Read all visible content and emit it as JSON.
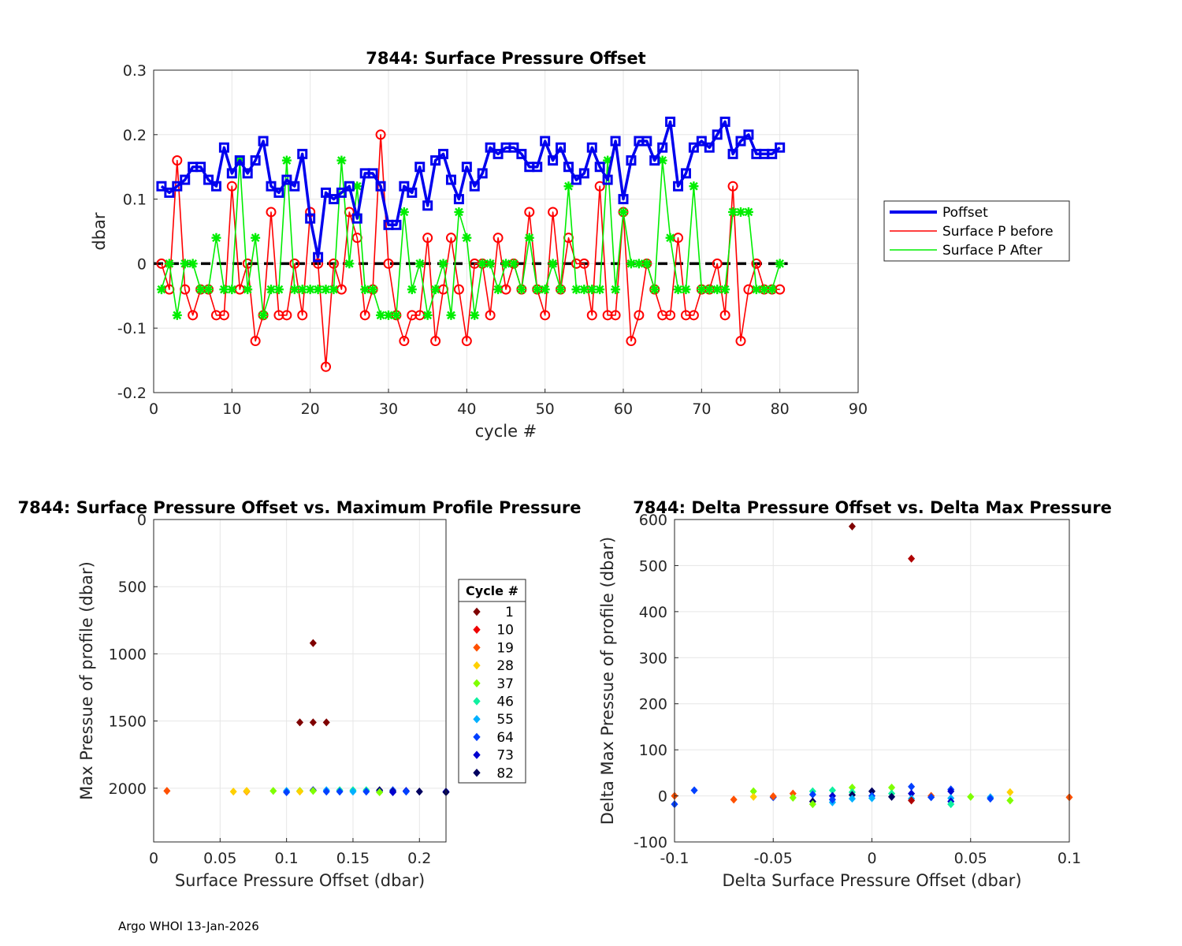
{
  "footer": "Argo WHOI 13-Jan-2026",
  "chart_data": [
    {
      "type": "line",
      "title": "7844: Surface Pressure Offset",
      "xlabel": "cycle #",
      "ylabel": "dbar",
      "xlim": [
        0,
        90
      ],
      "ylim": [
        -0.2,
        0.3
      ],
      "xticks": [
        0,
        10,
        20,
        30,
        40,
        50,
        60,
        70,
        80,
        90
      ],
      "yticks": [
        -0.2,
        -0.1,
        0,
        0.1,
        0.2,
        0.3
      ],
      "grid": true,
      "legend_position": "right",
      "zero_line": {
        "x": [
          0,
          81
        ],
        "y": 0,
        "style": "dashed",
        "color": "#000000"
      },
      "x": [
        1,
        2,
        3,
        4,
        5,
        6,
        7,
        8,
        9,
        10,
        11,
        12,
        13,
        14,
        15,
        16,
        17,
        18,
        19,
        20,
        21,
        22,
        23,
        24,
        25,
        26,
        27,
        28,
        29,
        30,
        31,
        32,
        33,
        34,
        35,
        36,
        37,
        38,
        39,
        40,
        41,
        42,
        43,
        44,
        45,
        46,
        47,
        48,
        49,
        50,
        51,
        52,
        53,
        54,
        55,
        56,
        57,
        58,
        59,
        60,
        61,
        62,
        63,
        64,
        65,
        66,
        67,
        68,
        69,
        70,
        71,
        72,
        73,
        74,
        75,
        76,
        77,
        78,
        79,
        80
      ],
      "series": [
        {
          "name": "Poffset",
          "color": "#0000ee",
          "marker": "square",
          "linewidth": 4,
          "values": [
            0.12,
            0.11,
            0.12,
            0.13,
            0.15,
            0.15,
            0.13,
            0.12,
            0.18,
            0.14,
            0.16,
            0.14,
            0.16,
            0.19,
            0.12,
            0.11,
            0.13,
            0.12,
            0.17,
            0.07,
            0.01,
            0.11,
            0.1,
            0.11,
            0.12,
            0.07,
            0.14,
            0.14,
            0.12,
            0.06,
            0.06,
            0.12,
            0.11,
            0.15,
            0.09,
            0.16,
            0.17,
            0.13,
            0.1,
            0.15,
            0.12,
            0.14,
            0.18,
            0.17,
            0.18,
            0.18,
            0.17,
            0.15,
            0.15,
            0.19,
            0.16,
            0.18,
            0.15,
            0.13,
            0.14,
            0.18,
            0.15,
            0.13,
            0.19,
            0.1,
            0.16,
            0.19,
            0.19,
            0.16,
            0.18,
            0.22,
            0.12,
            0.14,
            0.18,
            0.19,
            0.18,
            0.2,
            0.22,
            0.17,
            0.19,
            0.2,
            0.17,
            0.17,
            0.17,
            0.18
          ]
        },
        {
          "name": "Surface P before",
          "color": "#ff0000",
          "marker": "circle",
          "linewidth": 1.5,
          "values": [
            0.0,
            -0.04,
            0.16,
            -0.04,
            -0.08,
            -0.04,
            -0.04,
            -0.08,
            -0.08,
            0.12,
            -0.04,
            0.0,
            -0.12,
            -0.08,
            0.08,
            -0.08,
            -0.08,
            0.0,
            -0.08,
            0.08,
            0.0,
            -0.16,
            0.0,
            -0.04,
            0.08,
            0.04,
            -0.08,
            -0.04,
            0.2,
            0.0,
            -0.08,
            -0.12,
            -0.08,
            -0.08,
            0.04,
            -0.12,
            -0.04,
            0.04,
            -0.04,
            -0.12,
            0.0,
            0.0,
            -0.08,
            0.04,
            -0.04,
            0.0,
            -0.04,
            0.08,
            -0.04,
            -0.08,
            0.08,
            -0.04,
            0.04,
            0.0,
            0.0,
            -0.08,
            0.12,
            -0.08,
            -0.08,
            0.08,
            -0.12,
            -0.08,
            0.0,
            -0.04,
            -0.08,
            -0.08,
            0.04,
            -0.08,
            -0.08,
            -0.04,
            -0.04,
            0.0,
            -0.08,
            0.12,
            -0.12,
            -0.04,
            0.0,
            -0.04,
            -0.04,
            -0.04
          ]
        },
        {
          "name": "Surface P After",
          "color": "#00ee00",
          "marker": "star",
          "linewidth": 1.5,
          "values": [
            -0.04,
            0.0,
            -0.08,
            0.0,
            0.0,
            -0.04,
            -0.04,
            0.04,
            -0.04,
            -0.04,
            0.16,
            -0.04,
            0.04,
            -0.08,
            -0.04,
            -0.04,
            0.16,
            -0.04,
            -0.04,
            -0.04,
            -0.04,
            -0.04,
            -0.04,
            0.16,
            0.0,
            0.12,
            -0.04,
            -0.04,
            -0.08,
            -0.08,
            -0.08,
            0.08,
            -0.04,
            0.0,
            -0.08,
            -0.04,
            0.0,
            -0.08,
            0.08,
            0.04,
            -0.08,
            0.0,
            0.0,
            -0.04,
            0.0,
            0.0,
            -0.04,
            0.04,
            -0.04,
            -0.04,
            0.0,
            -0.04,
            0.12,
            -0.04,
            -0.04,
            -0.04,
            -0.04,
            0.16,
            -0.04,
            0.08,
            0.0,
            0.0,
            0.0,
            -0.04,
            0.16,
            0.04,
            -0.04,
            -0.04,
            0.12,
            -0.04,
            -0.04,
            -0.04,
            -0.04,
            0.08,
            0.08,
            0.08,
            -0.04,
            -0.04,
            -0.04,
            0.0
          ]
        }
      ]
    },
    {
      "type": "scatter",
      "title": "7844: Surface Pressure Offset vs. Maximum Profile Pressure",
      "xlabel": "Surface Pressure Offset (dbar)",
      "ylabel": "Max Pressue of profile (dbar)",
      "xlim": [
        0,
        0.22
      ],
      "ylim": [
        0,
        2400
      ],
      "y_reversed": true,
      "xticks": [
        0,
        0.05,
        0.1,
        0.15,
        0.2
      ],
      "yticks": [
        0,
        500,
        1000,
        1500,
        2000
      ],
      "grid": true,
      "legend": {
        "title": "Cycle #",
        "entries": [
          "1",
          "10",
          "19",
          "28",
          "37",
          "46",
          "55",
          "64",
          "73",
          "82"
        ],
        "colors": [
          "#7f0000",
          "#ee0000",
          "#ff5000",
          "#ffd000",
          "#7fff00",
          "#10f0a0",
          "#00b0ff",
          "#0040ff",
          "#0000d0",
          "#000060"
        ],
        "position": "right"
      },
      "points": [
        {
          "x": 0.12,
          "y": 920,
          "c": "#7f0000"
        },
        {
          "x": 0.11,
          "y": 1510,
          "c": "#7f0000"
        },
        {
          "x": 0.12,
          "y": 1510,
          "c": "#7f0000"
        },
        {
          "x": 0.13,
          "y": 1510,
          "c": "#7f0000"
        },
        {
          "x": 0.01,
          "y": 2020,
          "c": "#ff5000"
        },
        {
          "x": 0.06,
          "y": 2025,
          "c": "#ffd000"
        },
        {
          "x": 0.07,
          "y": 2025,
          "c": "#ff8000"
        },
        {
          "x": 0.07,
          "y": 2020,
          "c": "#ffd000"
        },
        {
          "x": 0.09,
          "y": 2020,
          "c": "#7fff00"
        },
        {
          "x": 0.1,
          "y": 2020,
          "c": "#00b0ff"
        },
        {
          "x": 0.1,
          "y": 2030,
          "c": "#0040ff"
        },
        {
          "x": 0.11,
          "y": 2020,
          "c": "#7fff00"
        },
        {
          "x": 0.11,
          "y": 2025,
          "c": "#ffd000"
        },
        {
          "x": 0.12,
          "y": 2015,
          "c": "#0000d0"
        },
        {
          "x": 0.12,
          "y": 2020,
          "c": "#7fff00"
        },
        {
          "x": 0.13,
          "y": 2015,
          "c": "#00b0ff"
        },
        {
          "x": 0.13,
          "y": 2025,
          "c": "#0040ff"
        },
        {
          "x": 0.14,
          "y": 2015,
          "c": "#10f0a0"
        },
        {
          "x": 0.14,
          "y": 2025,
          "c": "#0040ff"
        },
        {
          "x": 0.15,
          "y": 2015,
          "c": "#10f0a0"
        },
        {
          "x": 0.15,
          "y": 2025,
          "c": "#00b0ff"
        },
        {
          "x": 0.16,
          "y": 2015,
          "c": "#10f0a0"
        },
        {
          "x": 0.16,
          "y": 2025,
          "c": "#0040ff"
        },
        {
          "x": 0.17,
          "y": 2015,
          "c": "#000060"
        },
        {
          "x": 0.17,
          "y": 2025,
          "c": "#0000d0"
        },
        {
          "x": 0.17,
          "y": 2030,
          "c": "#7fff00"
        },
        {
          "x": 0.18,
          "y": 2015,
          "c": "#0040ff"
        },
        {
          "x": 0.18,
          "y": 2025,
          "c": "#000060"
        },
        {
          "x": 0.18,
          "y": 2030,
          "c": "#0000d0"
        },
        {
          "x": 0.19,
          "y": 2020,
          "c": "#0000d0"
        },
        {
          "x": 0.19,
          "y": 2025,
          "c": "#0040ff"
        },
        {
          "x": 0.2,
          "y": 2025,
          "c": "#000060"
        },
        {
          "x": 0.22,
          "y": 2025,
          "c": "#0000d0"
        },
        {
          "x": 0.22,
          "y": 2030,
          "c": "#000060"
        }
      ]
    },
    {
      "type": "scatter",
      "title": "7844: Delta Pressure Offset vs. Delta Max Pressure",
      "xlabel": "Delta Surface Pressure Offset (dbar)",
      "ylabel": "Delta Max Pressue of profile (dbar)",
      "xlim": [
        -0.1,
        0.1
      ],
      "ylim": [
        -100,
        600
      ],
      "xticks": [
        -0.1,
        -0.05,
        0,
        0.05,
        0.1
      ],
      "yticks": [
        -100,
        0,
        100,
        200,
        300,
        400,
        500,
        600
      ],
      "grid": true,
      "points": [
        {
          "x": -0.01,
          "y": 585,
          "c": "#7f0000"
        },
        {
          "x": 0.02,
          "y": 515,
          "c": "#b00000"
        },
        {
          "x": -0.1,
          "y": 0,
          "c": "#ff5000"
        },
        {
          "x": -0.1,
          "y": -18,
          "c": "#0040ff"
        },
        {
          "x": -0.09,
          "y": 12,
          "c": "#0040ff"
        },
        {
          "x": -0.07,
          "y": -8,
          "c": "#ff5000"
        },
        {
          "x": -0.06,
          "y": 10,
          "c": "#7fff00"
        },
        {
          "x": -0.06,
          "y": -2,
          "c": "#ffd000"
        },
        {
          "x": -0.05,
          "y": -3,
          "c": "#0040ff"
        },
        {
          "x": -0.05,
          "y": -1,
          "c": "#ff5000"
        },
        {
          "x": -0.04,
          "y": 5,
          "c": "#ff5000"
        },
        {
          "x": -0.04,
          "y": -4,
          "c": "#7fff00"
        },
        {
          "x": -0.03,
          "y": 10,
          "c": "#10f0a0"
        },
        {
          "x": -0.03,
          "y": 3,
          "c": "#0040ff"
        },
        {
          "x": -0.03,
          "y": -12,
          "c": "#000060"
        },
        {
          "x": -0.03,
          "y": -18,
          "c": "#7fff00"
        },
        {
          "x": -0.02,
          "y": 12,
          "c": "#10f0a0"
        },
        {
          "x": -0.02,
          "y": 0,
          "c": "#0000d0"
        },
        {
          "x": -0.02,
          "y": -14,
          "c": "#00b0ff"
        },
        {
          "x": -0.02,
          "y": -8,
          "c": "#0040ff"
        },
        {
          "x": -0.01,
          "y": 18,
          "c": "#7fff00"
        },
        {
          "x": -0.01,
          "y": 8,
          "c": "#10f0a0"
        },
        {
          "x": -0.01,
          "y": 2,
          "c": "#000060"
        },
        {
          "x": -0.01,
          "y": -6,
          "c": "#00b0ff"
        },
        {
          "x": 0.0,
          "y": 10,
          "c": "#000060"
        },
        {
          "x": 0.0,
          "y": 0,
          "c": "#0040ff"
        },
        {
          "x": 0.0,
          "y": -5,
          "c": "#00b0ff"
        },
        {
          "x": 0.01,
          "y": 18,
          "c": "#7fff00"
        },
        {
          "x": 0.01,
          "y": 5,
          "c": "#10f0a0"
        },
        {
          "x": 0.01,
          "y": -2,
          "c": "#000060"
        },
        {
          "x": 0.02,
          "y": 20,
          "c": "#0040ff"
        },
        {
          "x": 0.02,
          "y": 5,
          "c": "#0000d0"
        },
        {
          "x": 0.02,
          "y": -6,
          "c": "#00b0ff"
        },
        {
          "x": 0.02,
          "y": -10,
          "c": "#b00000"
        },
        {
          "x": 0.03,
          "y": 0,
          "c": "#ff5000"
        },
        {
          "x": 0.03,
          "y": -3,
          "c": "#0040ff"
        },
        {
          "x": 0.04,
          "y": 14,
          "c": "#0040ff"
        },
        {
          "x": 0.04,
          "y": 10,
          "c": "#0000d0"
        },
        {
          "x": 0.04,
          "y": -5,
          "c": "#00b0ff"
        },
        {
          "x": 0.04,
          "y": -12,
          "c": "#0000d0"
        },
        {
          "x": 0.04,
          "y": -18,
          "c": "#10f0a0"
        },
        {
          "x": 0.05,
          "y": -2,
          "c": "#7fff00"
        },
        {
          "x": 0.06,
          "y": -3,
          "c": "#00b0ff"
        },
        {
          "x": 0.06,
          "y": -6,
          "c": "#0040ff"
        },
        {
          "x": 0.07,
          "y": 8,
          "c": "#ffd000"
        },
        {
          "x": 0.07,
          "y": -10,
          "c": "#7fff00"
        },
        {
          "x": 0.1,
          "y": -3,
          "c": "#ff5000"
        }
      ]
    }
  ]
}
